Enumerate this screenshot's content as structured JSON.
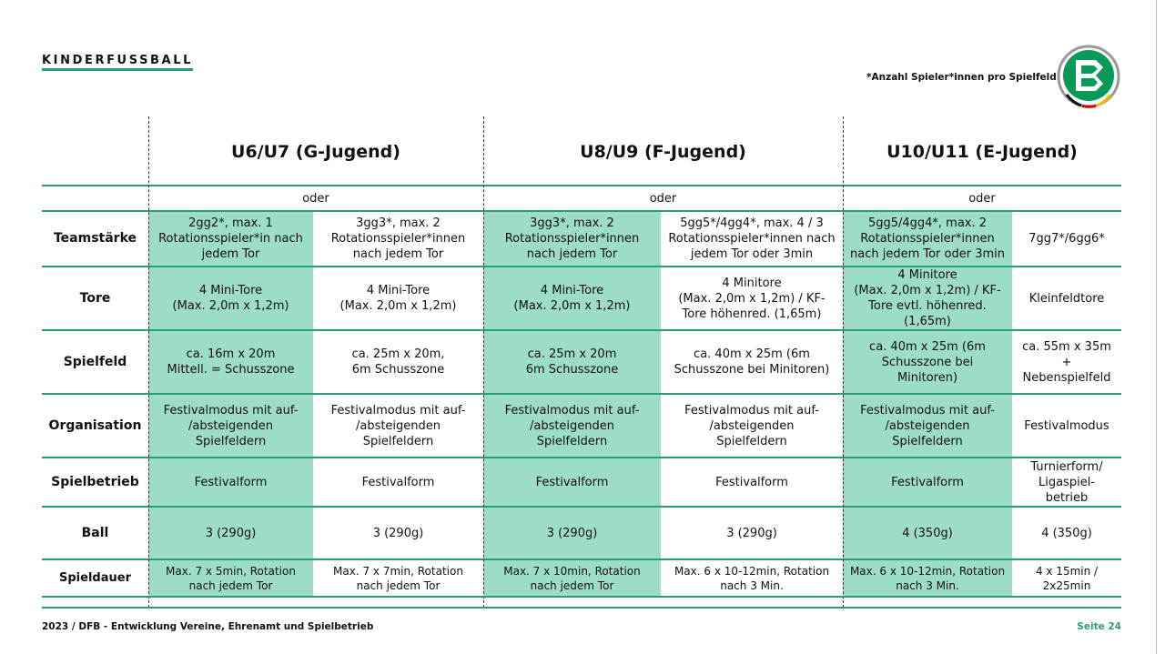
{
  "page_title": "KINDERFUSSBALL",
  "note": "*Anzahl Spieler*innen pro Spielfeld",
  "logo_text": "DFB",
  "colors": {
    "accent": "#2a9d78",
    "highlight": "#9ddcc5"
  },
  "groups": [
    "U6/U7 (G-Jugend)",
    "U8/U9 (F-Jugend)",
    "U10/U11 (E-Jugend)"
  ],
  "oder": "oder",
  "rows": [
    {
      "label": "Teamstärke",
      "cells": [
        "2gg2*, max. 1\nRotationsspieler*in nach\njedem Tor",
        "3gg3*, max. 2\nRotationsspieler*innen\nnach jedem Tor",
        "3gg3*, max. 2\nRotationsspieler*innen\nnach jedem Tor",
        "5gg5*/4gg4*, max. 4 / 3\nRotationsspieler*innen nach\njedem Tor oder 3min",
        "5gg5/4gg4*, max. 2\nRotationsspieler*innen\nnach jedem Tor oder 3min",
        "7gg7*/6gg6*"
      ]
    },
    {
      "label": "Tore",
      "cells": [
        "4 Mini-Tore\n(Max. 2,0m x 1,2m)",
        "4 Mini-Tore\n(Max. 2,0m x 1,2m)",
        "4 Mini-Tore\n(Max. 2,0m x 1,2m)",
        "4 Minitore\n(Max. 2,0m x 1,2m) / KF-\nTore höhenred. (1,65m)",
        "4 Minitore\n(Max. 2,0m x 1,2m) / KF-\nTore evtl. höhenred.\n(1,65m)",
        "Kleinfeldtore"
      ]
    },
    {
      "label": "Spielfeld",
      "cells": [
        "ca. 16m x 20m\nMittell. = Schusszone",
        "ca. 25m x 20m,\n6m Schusszone",
        "ca. 25m x 20m\n6m Schusszone",
        "ca. 40m x 25m (6m\nSchusszone bei Minitoren)",
        "ca. 40m x 25m (6m\nSchusszone bei\nMinitoren)",
        "ca. 55m x 35m\n+\nNebenspielfeld"
      ]
    },
    {
      "label": "Organisation",
      "cells": [
        "Festivalmodus mit auf-\n/absteigenden\nSpielfeldern",
        "Festivalmodus mit auf-\n/absteigenden\nSpielfeldern",
        "Festivalmodus mit auf-\n/absteigenden\nSpielfeldern",
        "Festivalmodus mit auf-\n/absteigenden\nSpielfeldern",
        "Festivalmodus mit auf-\n/absteigenden\nSpielfeldern",
        "Festivalmodus"
      ]
    },
    {
      "label": "Spielbetrieb",
      "cells": [
        "Festivalform",
        "Festivalform",
        "Festivalform",
        "Festivalform",
        "Festivalform",
        "Turnierform/\nLigaspiel-\nbetrieb"
      ]
    },
    {
      "label": "Ball",
      "cells": [
        "3 (290g)",
        "3 (290g)",
        "3 (290g)",
        "3 (290g)",
        "4 (350g)",
        "4 (350g)"
      ]
    },
    {
      "label": "Spieldauer",
      "cells": [
        "Max. 7 x 5min, Rotation\nnach jedem Tor",
        "Max. 7 x 7min, Rotation\nnach jedem Tor",
        "Max. 7 x  10min, Rotation\nnach jedem Tor",
        "Max. 6 x 10-12min, Rotation\nnach 3 Min.",
        "Max. 6 x 10-12min, Rotation\nnach 3 Min.",
        "4 x 15min /\n2x25min"
      ]
    }
  ],
  "footer": {
    "left": "2023  / DFB - Entwicklung Vereine, Ehrenamt und Spielbetrieb",
    "right": "Seite 24"
  }
}
